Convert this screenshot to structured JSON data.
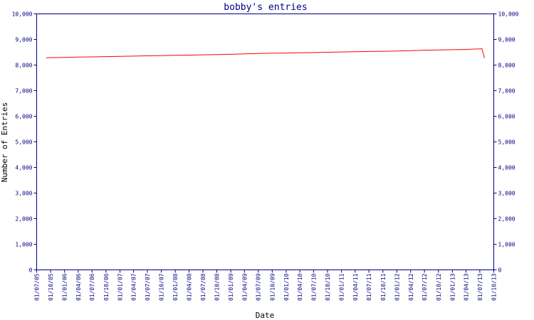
{
  "chart_data": {
    "type": "line",
    "title": "bobby's entries",
    "xlabel": "Date",
    "ylabel": "Number of Entries",
    "ylim": [
      0,
      10000
    ],
    "y_ticks": [
      "0",
      "1,000",
      "2,000",
      "3,000",
      "4,000",
      "5,000",
      "6,000",
      "7,000",
      "8,000",
      "9,000",
      "10,000"
    ],
    "x_ticks": [
      "01/07/05",
      "01/10/05",
      "01/01/06",
      "01/04/06",
      "01/07/06",
      "01/10/06",
      "01/01/07",
      "01/04/07",
      "01/07/07",
      "01/10/07",
      "01/01/08",
      "01/04/08",
      "01/07/08",
      "01/10/08",
      "01/01/09",
      "01/04/09",
      "01/07/09",
      "01/10/09",
      "01/01/10",
      "01/04/10",
      "01/07/10",
      "01/10/10",
      "01/01/11",
      "01/04/11",
      "01/07/11",
      "01/10/11",
      "01/01/12",
      "01/04/12",
      "01/07/12",
      "01/10/12",
      "01/01/13",
      "01/04/13",
      "01/07/13",
      "01/10/13"
    ],
    "series": [
      {
        "color": "#ff0000",
        "x": [
          "01/09/05",
          "01/10/05",
          "01/01/06",
          "01/04/06",
          "01/07/06",
          "01/10/06",
          "01/01/07",
          "01/04/07",
          "01/07/07",
          "01/10/07",
          "01/01/08",
          "01/04/08",
          "01/07/08",
          "01/10/08",
          "01/01/09",
          "01/04/09",
          "01/07/09",
          "01/10/09",
          "01/01/10",
          "01/04/10",
          "01/07/10",
          "01/10/10",
          "01/01/11",
          "01/04/11",
          "01/07/11",
          "01/10/11",
          "01/01/12",
          "01/04/12",
          "01/07/12",
          "01/10/12",
          "01/01/13",
          "01/04/13",
          "01/07/13",
          "15/07/13",
          "01/08/13"
        ],
        "values": [
          8290,
          8290,
          8300,
          8310,
          8320,
          8330,
          8340,
          8350,
          8360,
          8370,
          8380,
          8390,
          8400,
          8410,
          8420,
          8440,
          8450,
          8460,
          8470,
          8480,
          8490,
          8500,
          8510,
          8520,
          8530,
          8540,
          8550,
          8560,
          8580,
          8590,
          8600,
          8610,
          8630,
          8640,
          8270
        ]
      }
    ],
    "grid": false,
    "legend": "none"
  },
  "colors": {
    "axis": "#000080",
    "line": "#ff0000",
    "background": "#ffffff"
  }
}
